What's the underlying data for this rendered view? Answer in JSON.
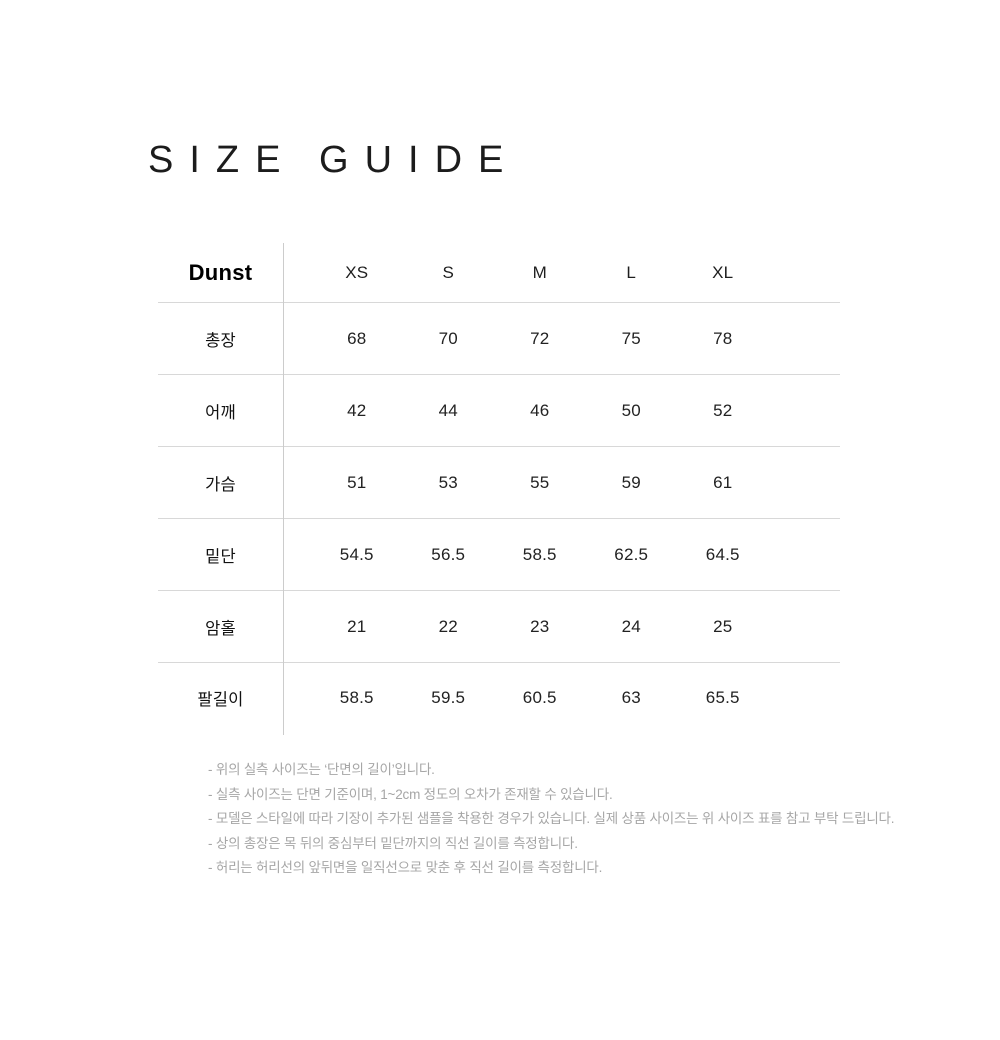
{
  "title": "SIZE GUIDE",
  "table": {
    "brand": "Dunst",
    "columns": [
      "XS",
      "S",
      "M",
      "L",
      "XL"
    ],
    "rows": [
      {
        "label": "총장",
        "values": [
          "68",
          "70",
          "72",
          "75",
          "78"
        ]
      },
      {
        "label": "어깨",
        "values": [
          "42",
          "44",
          "46",
          "50",
          "52"
        ]
      },
      {
        "label": "가슴",
        "values": [
          "51",
          "53",
          "55",
          "59",
          "61"
        ]
      },
      {
        "label": "밑단",
        "values": [
          "54.5",
          "56.5",
          "58.5",
          "62.5",
          "64.5"
        ]
      },
      {
        "label": "암홀",
        "values": [
          "21",
          "22",
          "23",
          "24",
          "25"
        ]
      },
      {
        "label": "팔길이",
        "values": [
          "58.5",
          "59.5",
          "60.5",
          "63",
          "65.5"
        ]
      }
    ]
  },
  "notes": [
    "- 위의 실측 사이즈는 ‘단면의 길이’입니다.",
    "- 실측 사이즈는 단면 기준이며, 1~2cm 정도의 오차가 존재할 수 있습니다.",
    "- 모델은 스타일에 따라 기장이 추가된 샘플을 착용한 경우가 있습니다. 실제 상품 사이즈는 위 사이즈 표를 참고 부탁 드립니다.",
    "- 상의 총장은 목 뒤의 중심부터 밑단까지의 직선 길이를 측정합니다.",
    "- 허리는 허리선의 앞뒤면을 일직선으로 맞춘 후 직선 길이를 측정합니다."
  ],
  "colors": {
    "text": "#1a1a1a",
    "muted_text": "#a6a6a6",
    "line": "#d8d8d8"
  }
}
